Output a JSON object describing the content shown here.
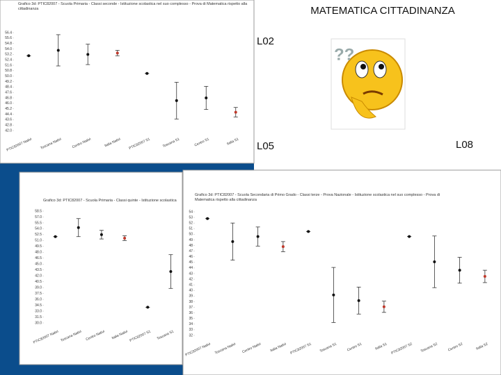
{
  "slide": {
    "title": "MATEMATICA  CITTADINANZA",
    "labels": [
      "L02",
      "L05",
      "L08"
    ]
  },
  "chart_data": [
    {
      "type": "errorbar",
      "title": "Grafico 3d: PTIC82007 - Scuola Primaria - Classi seconde - Istituzione scolastica nel suo complesso - Prova di Matematica rispetto alla cittadinanza",
      "categories": [
        "PTIC82007 Nativi",
        "Toscana Nativi",
        "Centro Nativi",
        "Italia Nativi",
        "PTIC82007 S1",
        "Toscana S1",
        "Centro S1",
        "Italia S1"
      ],
      "values": [
        53.0,
        53.8,
        53.2,
        53.4,
        50.4,
        46.4,
        46.8,
        44.7
      ],
      "errors": [
        0,
        2.3,
        1.5,
        0.4,
        0,
        2.7,
        1.7,
        0.7
      ],
      "colors": [
        "#111111",
        "#111111",
        "#111111",
        "#c0392b",
        "#111111",
        "#111111",
        "#111111",
        "#c0392b"
      ],
      "ylim": [
        42.0,
        56.4
      ],
      "yticks": [
        {
          "value": 42,
          "label": "42.0"
        },
        42.8,
        43.6,
        44.4,
        45.2,
        {
          "value": 46,
          "label": "46.0"
        },
        46.8,
        47.6,
        48.4,
        49.2,
        {
          "value": 50,
          "label": "50.0"
        },
        50.8,
        51.6,
        52.4,
        53.2,
        {
          "value": 54,
          "label": "54.0"
        },
        54.8,
        55.6,
        56.4
      ]
    },
    {
      "type": "errorbar",
      "title": "Grafico 3d: PTIC82007 - Scuola Primaria - Classi quinte - Istituzione scolastica",
      "categories": [
        "PTIC82007 Nativi",
        "Toscana Nativi",
        "Centro Nativi",
        "Italia Nativi",
        "PTIC82007 S1",
        "Toscana S1"
      ],
      "values": [
        52.0,
        54.3,
        52.5,
        51.6,
        34.0,
        43.1
      ],
      "errors": [
        0,
        2.3,
        1.1,
        0.6,
        0,
        4.3
      ],
      "colors": [
        "#111111",
        "#111111",
        "#111111",
        "#c0392b",
        "#111111",
        "#111111"
      ],
      "ylim": [
        30,
        58.5
      ],
      "yticks": [
        {
          "value": 30,
          "label": "30.0"
        },
        31.5,
        {
          "value": 33,
          "label": "33.0"
        },
        34.5,
        {
          "value": 36,
          "label": "36.0"
        },
        37.5,
        {
          "value": 39,
          "label": "39.0"
        },
        40.5,
        {
          "value": 42,
          "label": "42.0"
        },
        43.5,
        {
          "value": 45,
          "label": "45.0"
        },
        46.5,
        {
          "value": 48,
          "label": "48.0"
        },
        49.5,
        {
          "value": 51,
          "label": "51.0"
        },
        52.5,
        {
          "value": 54,
          "label": "54.0"
        },
        55.5,
        {
          "value": 57,
          "label": "57.0"
        },
        58.5
      ]
    },
    {
      "type": "errorbar",
      "title": "Grafico 3d: PTIC82007 - Scuola Secondaria di Primo Grado - Classi terze - Prova Nazionale - Istituzione scolastica nel suo complesso - Prova di Matematica rispetto alla cittadinanza",
      "categories": [
        "PTIC82007 Nativi",
        "Toscana Nativi",
        "Centro Nativi",
        "Italia Nativi",
        "PTIC82007 S1",
        "Toscana S1",
        "Centro S1",
        "Italia S1",
        "PTIC82007 S2",
        "Toscana S2",
        "Centro S2",
        "Italia S2"
      ],
      "values": [
        52.8,
        48.7,
        49.6,
        47.8,
        50.5,
        39.2,
        38.2,
        37.1,
        49.6,
        45.1,
        43.6,
        42.5
      ],
      "errors": [
        0,
        3.3,
        1.7,
        0.9,
        0,
        4.9,
        2.4,
        1.0,
        0,
        4.6,
        2.3,
        1.1
      ],
      "colors": [
        "#111111",
        "#111111",
        "#111111",
        "#c0392b",
        "#111111",
        "#111111",
        "#111111",
        "#c0392b",
        "#111111",
        "#111111",
        "#111111",
        "#c0392b"
      ],
      "ylim": [
        32,
        54
      ],
      "yticks": [
        32,
        33,
        34,
        35,
        36,
        37,
        38,
        39,
        40,
        41,
        42,
        43,
        44,
        45,
        46,
        47,
        48,
        49,
        50,
        51,
        52,
        53,
        54
      ]
    }
  ]
}
